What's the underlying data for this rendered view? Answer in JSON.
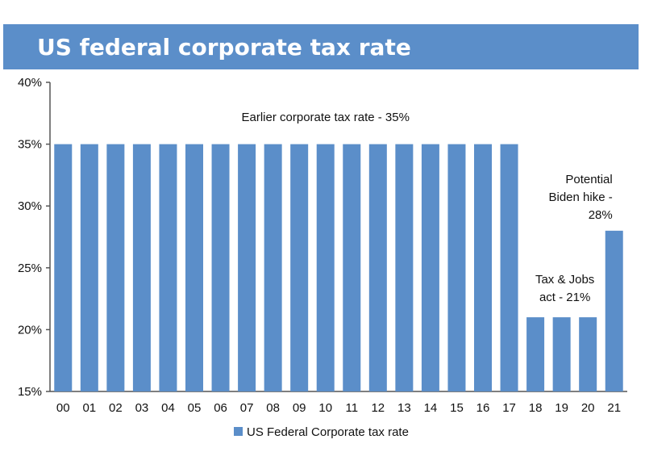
{
  "header": {
    "title": "US federal corporate tax rate"
  },
  "colors": {
    "title_bar": "#5b8ec9",
    "bar": "#5b8ec9",
    "axis": "#555555",
    "text": "#111111"
  },
  "chart_data": {
    "type": "bar",
    "title": "US federal corporate tax rate",
    "xlabel": "",
    "ylabel": "",
    "ylim": [
      15,
      40
    ],
    "yticks": [
      "15%",
      "20%",
      "25%",
      "30%",
      "35%",
      "40%"
    ],
    "categories": [
      "00",
      "01",
      "02",
      "03",
      "04",
      "05",
      "06",
      "07",
      "08",
      "09",
      "10",
      "11",
      "12",
      "13",
      "14",
      "15",
      "16",
      "17",
      "18",
      "19",
      "20",
      "21"
    ],
    "series": [
      {
        "name": "US Federal Corporate tax rate",
        "values": [
          35,
          35,
          35,
          35,
          35,
          35,
          35,
          35,
          35,
          35,
          35,
          35,
          35,
          35,
          35,
          35,
          35,
          35,
          21,
          21,
          21,
          28
        ]
      }
    ],
    "grid": false,
    "legend": "bottom",
    "annotations": [
      {
        "text": [
          "Earlier corporate tax rate - 35%"
        ]
      },
      {
        "text": [
          "Tax & Jobs",
          "act - 21%"
        ]
      },
      {
        "text": [
          "Potential",
          "Biden hike -",
          "28%"
        ]
      }
    ]
  }
}
